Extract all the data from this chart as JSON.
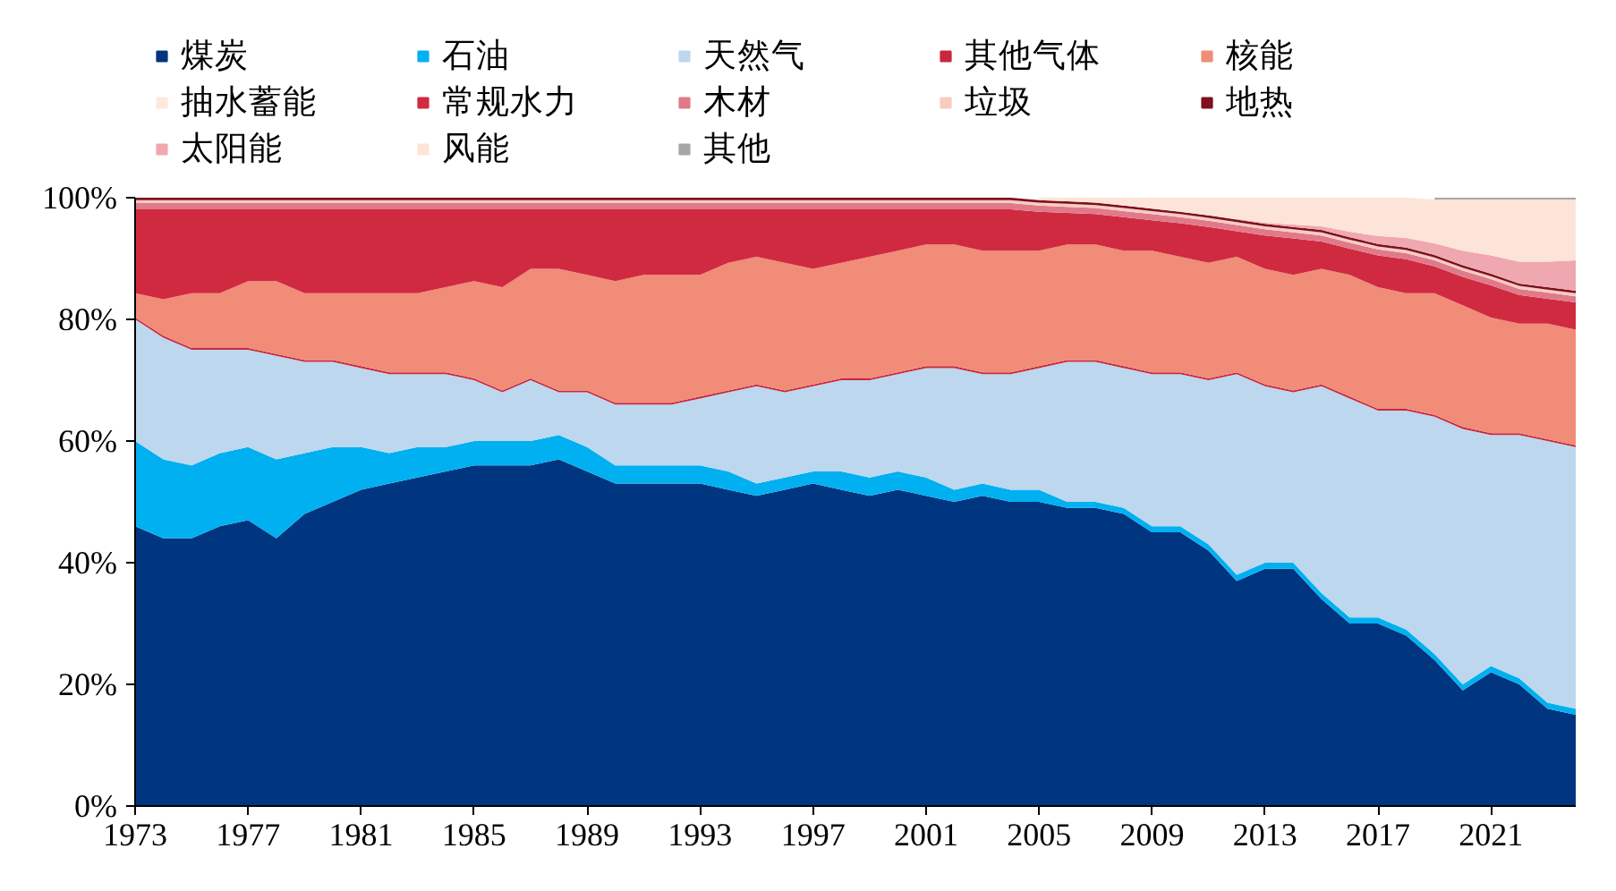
{
  "chart_data": {
    "type": "area",
    "stacked": true,
    "legend": "top",
    "grid": false,
    "x": [
      1973,
      1974,
      1975,
      1976,
      1977,
      1978,
      1979,
      1980,
      1981,
      1982,
      1983,
      1984,
      1985,
      1986,
      1987,
      1988,
      1989,
      1990,
      1991,
      1992,
      1993,
      1994,
      1995,
      1996,
      1997,
      1998,
      1999,
      2000,
      2001,
      2002,
      2003,
      2004,
      2005,
      2006,
      2007,
      2008,
      2009,
      2010,
      2011,
      2012,
      2013,
      2014,
      2015,
      2016,
      2017,
      2018,
      2019,
      2020,
      2021,
      2022,
      2023,
      2024
    ],
    "xlim": [
      1973,
      2024
    ],
    "xticks": [
      1973,
      1977,
      1981,
      1985,
      1989,
      1993,
      1997,
      2001,
      2005,
      2009,
      2013,
      2017,
      2021
    ],
    "ylim": [
      0,
      100
    ],
    "yticks": [
      {
        "value": 0,
        "label": "0%"
      },
      {
        "value": 20,
        "label": "20%"
      },
      {
        "value": 40,
        "label": "40%"
      },
      {
        "value": 60,
        "label": "60%"
      },
      {
        "value": 80,
        "label": "80%"
      },
      {
        "value": 100,
        "label": "100%"
      }
    ],
    "series": [
      {
        "name": "煤炭",
        "color": "#003580",
        "values": [
          46,
          44,
          44,
          46,
          47,
          44,
          48,
          50,
          52,
          53,
          54,
          55,
          56,
          56,
          56,
          57,
          55,
          53,
          53,
          53,
          53,
          52,
          51,
          52,
          53,
          52,
          51,
          52,
          51,
          50,
          51,
          50,
          50,
          49,
          49,
          48,
          45,
          45,
          42,
          37,
          39,
          39,
          34,
          30,
          30,
          28,
          24,
          19,
          22,
          20,
          16,
          15
        ]
      },
      {
        "name": "石油",
        "color": "#00b0f0",
        "values": [
          14,
          13,
          12,
          12,
          12,
          13,
          10,
          9,
          7,
          5,
          5,
          4,
          4,
          4,
          4,
          4,
          4,
          3,
          3,
          3,
          3,
          3,
          2,
          2,
          2,
          3,
          3,
          3,
          3,
          2,
          2,
          2,
          2,
          1,
          1,
          1,
          1,
          1,
          1,
          1,
          1,
          1,
          1,
          1,
          1,
          1,
          1,
          1,
          1,
          1,
          1,
          1
        ]
      },
      {
        "name": "天然气",
        "color": "#bdd7ee",
        "values": [
          20,
          20,
          19,
          17,
          16,
          17,
          15,
          14,
          13,
          13,
          12,
          12,
          10,
          8,
          10,
          7,
          9,
          10,
          10,
          10,
          11,
          13,
          16,
          14,
          14,
          15,
          16,
          16,
          18,
          20,
          18,
          19,
          20,
          23,
          23,
          23,
          25,
          25,
          27,
          33,
          29,
          28,
          34,
          36,
          34,
          36,
          39,
          42,
          38,
          40,
          43,
          43
        ]
      },
      {
        "name": "其他气体",
        "color": "#c8283c",
        "values": [
          0.3,
          0.3,
          0.3,
          0.3,
          0.3,
          0.3,
          0.3,
          0.3,
          0.3,
          0.3,
          0.3,
          0.3,
          0.3,
          0.3,
          0.3,
          0.3,
          0.3,
          0.3,
          0.3,
          0.3,
          0.3,
          0.3,
          0.3,
          0.3,
          0.3,
          0.3,
          0.3,
          0.3,
          0.3,
          0.3,
          0.3,
          0.3,
          0.3,
          0.3,
          0.3,
          0.3,
          0.3,
          0.3,
          0.3,
          0.3,
          0.3,
          0.3,
          0.3,
          0.3,
          0.3,
          0.3,
          0.3,
          0.3,
          0.3,
          0.3,
          0.3,
          0.3
        ]
      },
      {
        "name": "核能",
        "color": "#f08c78",
        "values": [
          4,
          6,
          9,
          9,
          11,
          12,
          11,
          11,
          12,
          13,
          13,
          14,
          16,
          17,
          18,
          20,
          19,
          20,
          21,
          21,
          20,
          21,
          21,
          21,
          19,
          19,
          20,
          20,
          20,
          20,
          20,
          20,
          19,
          19,
          19,
          19,
          20,
          19,
          19,
          19,
          19,
          19,
          19,
          20,
          20,
          19,
          20,
          20,
          19,
          18,
          19,
          19
        ]
      },
      {
        "name": "抽水蓄能",
        "color": "#fde9dc",
        "values": [
          null,
          null,
          null,
          null,
          null,
          null,
          null,
          null,
          null,
          null,
          null,
          null,
          null,
          null,
          null,
          null,
          null,
          null,
          null,
          null,
          null,
          null,
          null,
          null,
          null,
          null,
          null,
          null,
          null,
          null,
          null,
          null,
          null,
          null,
          null,
          null,
          null,
          null,
          null,
          null,
          null,
          null,
          null,
          null,
          null,
          null,
          null,
          null,
          null,
          null,
          null,
          null
        ]
      },
      {
        "name": "常规水力",
        "color": "#d02a40",
        "values": [
          13.8,
          14.8,
          13.8,
          13.8,
          11.8,
          11.8,
          13.8,
          13.8,
          13.8,
          13.8,
          13.8,
          12.8,
          11.8,
          12.8,
          9.8,
          9.8,
          10.8,
          11.8,
          10.8,
          10.8,
          10.8,
          8.8,
          7.8,
          8.8,
          9.8,
          8.8,
          7.8,
          6.8,
          5.8,
          5.8,
          6.8,
          6.8,
          6.4,
          5.2,
          5.0,
          5.5,
          5.0,
          5.5,
          5.9,
          4.2,
          5.5,
          6.0,
          4.5,
          4.3,
          5.2,
          5.6,
          4.4,
          4.7,
          5.3,
          4.7,
          4.1,
          4.5
        ]
      },
      {
        "name": "木材",
        "color": "#e07a8a",
        "values": [
          1,
          1,
          1,
          1,
          1,
          1,
          1,
          1,
          1,
          1,
          1,
          1,
          1,
          1,
          1,
          1,
          1,
          1,
          1,
          1,
          1,
          1,
          1,
          1,
          1,
          1,
          1,
          1,
          1,
          1,
          1,
          1,
          1,
          1,
          1,
          1,
          1,
          1,
          1,
          1,
          1,
          1,
          1,
          1,
          1,
          1,
          1,
          1,
          1,
          1,
          1,
          1
        ]
      },
      {
        "name": "垃圾",
        "color": "#f8cbc0",
        "values": [
          0.5,
          0.5,
          0.5,
          0.5,
          0.5,
          0.5,
          0.5,
          0.5,
          0.5,
          0.5,
          0.5,
          0.5,
          0.5,
          0.5,
          0.5,
          0.5,
          0.5,
          0.5,
          0.5,
          0.5,
          0.5,
          0.5,
          0.5,
          0.5,
          0.5,
          0.5,
          0.5,
          0.5,
          0.5,
          0.5,
          0.5,
          0.5,
          0.5,
          0.5,
          0.5,
          0.5,
          0.5,
          0.5,
          0.5,
          0.5,
          0.5,
          0.5,
          0.5,
          0.5,
          0.5,
          0.5,
          0.5,
          0.5,
          0.5,
          0.5,
          0.5,
          0.5
        ]
      },
      {
        "name": "地热",
        "color": "#7f1020",
        "values": [
          0.4,
          0.4,
          0.4,
          0.4,
          0.4,
          0.4,
          0.4,
          0.4,
          0.4,
          0.4,
          0.4,
          0.4,
          0.4,
          0.4,
          0.4,
          0.4,
          0.4,
          0.4,
          0.4,
          0.4,
          0.4,
          0.4,
          0.4,
          0.4,
          0.4,
          0.4,
          0.4,
          0.4,
          0.4,
          0.4,
          0.4,
          0.4,
          0.4,
          0.4,
          0.4,
          0.4,
          0.4,
          0.4,
          0.4,
          0.4,
          0.4,
          0.4,
          0.4,
          0.4,
          0.4,
          0.4,
          0.4,
          0.4,
          0.4,
          0.4,
          0.4,
          0.4
        ]
      },
      {
        "name": "太阳能",
        "color": "#f0a8b0",
        "values": [
          null,
          null,
          null,
          null,
          null,
          null,
          null,
          null,
          null,
          null,
          null,
          null,
          null,
          null,
          null,
          null,
          null,
          null,
          null,
          null,
          null,
          null,
          null,
          null,
          null,
          null,
          null,
          null,
          null,
          null,
          null,
          null,
          null,
          null,
          null,
          null,
          null,
          null,
          null,
          0.1,
          0.2,
          0.4,
          0.6,
          0.9,
          1.3,
          1.6,
          1.9,
          2.4,
          3,
          3.6,
          4.2,
          5
        ]
      },
      {
        "name": "风能",
        "color": "#fde4d8",
        "values": [
          null,
          null,
          null,
          null,
          null,
          null,
          null,
          null,
          null,
          null,
          null,
          null,
          null,
          null,
          null,
          null,
          null,
          null,
          null,
          null,
          null,
          null,
          null,
          null,
          null,
          null,
          null,
          null,
          null,
          null,
          null,
          null,
          0.4,
          0.6,
          0.8,
          1.3,
          1.8,
          2.3,
          2.9,
          3.5,
          4.1,
          4.4,
          4.7,
          5.6,
          6.3,
          6.6,
          7.2,
          8.4,
          9.2,
          10.2,
          10.2,
          10
        ]
      },
      {
        "name": "其他",
        "color": "#a6a6a6",
        "values": [
          null,
          null,
          null,
          null,
          null,
          null,
          null,
          null,
          null,
          null,
          null,
          null,
          null,
          null,
          null,
          null,
          null,
          null,
          null,
          null,
          null,
          null,
          null,
          null,
          null,
          null,
          null,
          null,
          null,
          null,
          null,
          null,
          null,
          null,
          null,
          null,
          null,
          null,
          null,
          null,
          null,
          null,
          null,
          null,
          null,
          null,
          0.3,
          0.3,
          0.3,
          0.3,
          0.3,
          0.3
        ]
      }
    ]
  }
}
